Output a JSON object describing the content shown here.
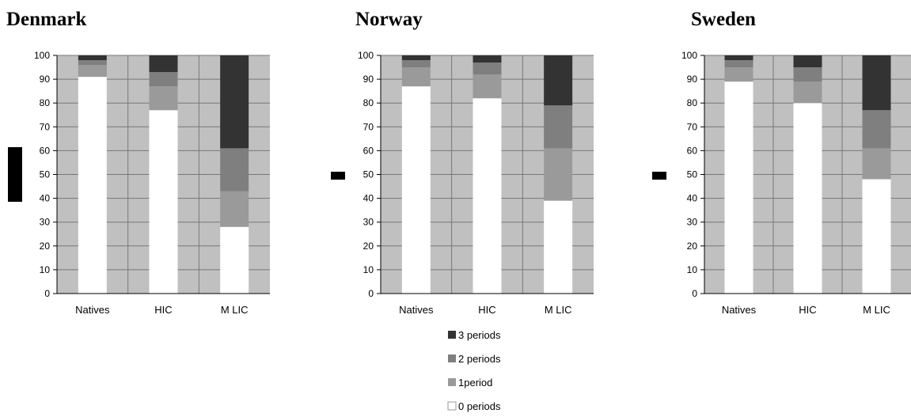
{
  "chart_data": [
    {
      "type": "bar",
      "stacked": true,
      "title": "Denmark",
      "categories": [
        "Natives",
        "HIC",
        "M LIC"
      ],
      "ylim": [
        0,
        100
      ],
      "yticks": [
        0,
        10,
        20,
        30,
        40,
        50,
        60,
        70,
        80,
        90,
        100
      ],
      "grid": true,
      "series": [
        {
          "name": "0 periods",
          "color": "#ffffff",
          "values": [
            91,
            77,
            28
          ]
        },
        {
          "name": "1period",
          "color": "#9a9a9a",
          "values": [
            5,
            10,
            15
          ]
        },
        {
          "name": "2 periods",
          "color": "#7f7f7f",
          "values": [
            2,
            6,
            18
          ]
        },
        {
          "name": "3 periods",
          "color": "#333333",
          "values": [
            2,
            7,
            39
          ]
        }
      ]
    },
    {
      "type": "bar",
      "stacked": true,
      "title": "Norway",
      "categories": [
        "Natives",
        "HIC",
        "M LIC"
      ],
      "ylim": [
        0,
        100
      ],
      "yticks": [
        0,
        10,
        20,
        30,
        40,
        50,
        60,
        70,
        80,
        90,
        100
      ],
      "grid": true,
      "series": [
        {
          "name": "0 periods",
          "color": "#ffffff",
          "values": [
            87,
            82,
            39
          ]
        },
        {
          "name": "1period",
          "color": "#9a9a9a",
          "values": [
            8,
            10,
            22
          ]
        },
        {
          "name": "2 periods",
          "color": "#7f7f7f",
          "values": [
            3,
            5,
            18
          ]
        },
        {
          "name": "3 periods",
          "color": "#333333",
          "values": [
            2,
            3,
            21
          ]
        }
      ]
    },
    {
      "type": "bar",
      "stacked": true,
      "title": "Sweden",
      "categories": [
        "Natives",
        "HIC",
        "M LIC"
      ],
      "ylim": [
        0,
        100
      ],
      "yticks": [
        0,
        10,
        20,
        30,
        40,
        50,
        60,
        70,
        80,
        90,
        100
      ],
      "grid": true,
      "series": [
        {
          "name": "0 periods",
          "color": "#ffffff",
          "values": [
            89,
            80,
            48
          ]
        },
        {
          "name": "1period",
          "color": "#9a9a9a",
          "values": [
            6,
            9,
            13
          ]
        },
        {
          "name": "2 periods",
          "color": "#7f7f7f",
          "values": [
            3,
            6,
            16
          ]
        },
        {
          "name": "3 periods",
          "color": "#333333",
          "values": [
            2,
            5,
            23
          ]
        }
      ]
    }
  ],
  "legend": {
    "placement": "below-center",
    "items": [
      {
        "label": "3 periods",
        "color": "#333333"
      },
      {
        "label": "2 periods",
        "color": "#7f7f7f"
      },
      {
        "label": "1period",
        "color": "#9a9a9a"
      },
      {
        "label": "0 periods",
        "color": "#ffffff"
      }
    ]
  }
}
